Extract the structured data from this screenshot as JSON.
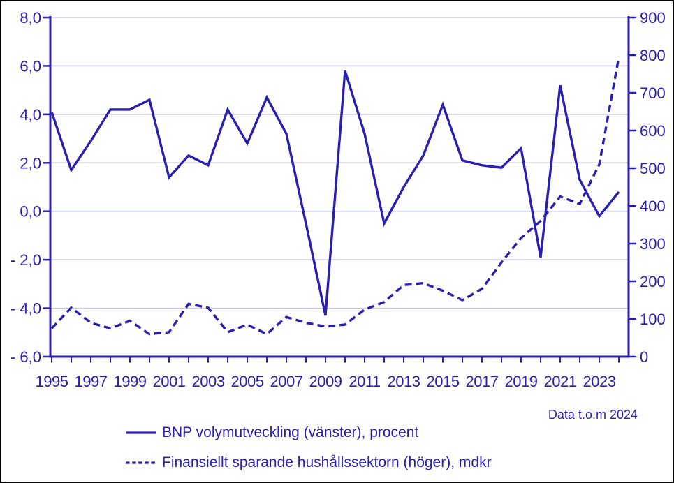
{
  "chart_data": {
    "type": "line",
    "years": [
      1995,
      1996,
      1997,
      1998,
      1999,
      2000,
      2001,
      2002,
      2003,
      2004,
      2005,
      2006,
      2007,
      2008,
      2009,
      2010,
      2011,
      2012,
      2013,
      2014,
      2015,
      2016,
      2017,
      2018,
      2019,
      2020,
      2021,
      2022,
      2023,
      2024
    ],
    "x_tick_labels": [
      "1995",
      "1997",
      "1999",
      "2001",
      "2003",
      "2005",
      "2007",
      "2009",
      "2011",
      "2013",
      "2015",
      "2017",
      "2019",
      "2021",
      "2023"
    ],
    "series": [
      {
        "name": "BNP volymutveckling (vänster), procent",
        "axis": "left",
        "style": "solid",
        "values": [
          4.1,
          1.7,
          2.9,
          4.2,
          4.2,
          4.6,
          1.4,
          2.3,
          1.9,
          4.2,
          2.8,
          4.7,
          3.2,
          -0.5,
          -4.3,
          5.8,
          3.2,
          -0.5,
          1.0,
          2.3,
          4.4,
          2.1,
          1.9,
          1.8,
          2.6,
          -1.9,
          5.2,
          1.3,
          -0.2,
          0.8
        ]
      },
      {
        "name": "Finansiellt sparande hushållssektorn (höger), mdkr",
        "axis": "right",
        "style": "dashed",
        "values": [
          75,
          130,
          90,
          75,
          95,
          60,
          65,
          140,
          130,
          65,
          85,
          60,
          105,
          90,
          80,
          85,
          125,
          145,
          190,
          195,
          175,
          150,
          180,
          250,
          315,
          360,
          425,
          405,
          510,
          795
        ]
      }
    ],
    "left_axis": {
      "min": -6,
      "max": 8,
      "step": 2,
      "tick_labels": [
        "8,0",
        "6,0",
        "4,0",
        "2,0",
        "0,0",
        "- 2,0",
        "- 4,0",
        "- 6,0"
      ]
    },
    "right_axis": {
      "min": 0,
      "max": 900,
      "step": 100,
      "tick_labels": [
        "900",
        "800",
        "700",
        "600",
        "500",
        "400",
        "300",
        "200",
        "100",
        "0"
      ]
    },
    "grid": true,
    "legend_position": "bottom"
  },
  "colors": {
    "line": "#2a1fb0",
    "grid": "#c9c9e9",
    "background": "#ffffff",
    "border": "#000000"
  },
  "footer": {
    "note": "Data t.o.m 2024"
  }
}
